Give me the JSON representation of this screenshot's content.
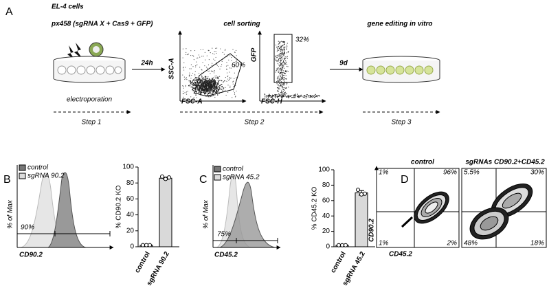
{
  "panel_labels": [
    "A",
    "B",
    "C",
    "D"
  ],
  "panel_a": {
    "cell_line": "EL-4 cells",
    "plasmid": "px458 (sgRNA X + Cas9 + GFP)",
    "electroporation": "electroporation",
    "time1": "24h",
    "sorting": "cell sorting",
    "ssc": "SSC-A",
    "fsc_a": "FSC-A",
    "gate1": "60%",
    "gfp": "GFP",
    "fsc_h": "FSC-H",
    "gate2": "32%",
    "time2": "9d",
    "editing": "gene editing in vitro",
    "steps": [
      "Step 1",
      "Step 2",
      "Step 3"
    ]
  },
  "panel_b": {
    "legend": [
      "control",
      "sgRNA 90.2"
    ],
    "y_label": "% of Max",
    "x_label": "CD90.2",
    "gate": "90%"
  },
  "panel_c": {
    "legend": [
      "control",
      "sgRNA 45.2"
    ],
    "y_label": "% of Max",
    "x_label": "CD45.2",
    "gate": "75%"
  },
  "panel_d": {
    "titles": [
      "control",
      "sgRNAs CD90.2+CD45.2"
    ],
    "y_label": "CD90.2",
    "x_label": "CD45.2",
    "quadrants": [
      [
        "1%",
        "96%",
        "1%",
        "2%"
      ],
      [
        "5.5%",
        "30%",
        "48%",
        "18%"
      ]
    ]
  },
  "chart_data": [
    {
      "type": "bar",
      "y_label": "% CD90.2 KO",
      "categories": [
        "control",
        "sgRNA 90.2"
      ],
      "values": [
        2,
        86
      ],
      "errors": [
        0.5,
        1.5
      ],
      "replicates": [
        [
          2,
          2,
          2
        ],
        [
          88,
          85,
          87
        ]
      ],
      "color": "#d9d9d9",
      "ylim": [
        0,
        100
      ],
      "yticks": [
        0,
        20,
        40,
        60,
        80,
        100
      ]
    },
    {
      "type": "bar",
      "y_label": "% CD45.2 KO",
      "categories": [
        "control",
        "sgRNA 45.2"
      ],
      "values": [
        2,
        70
      ],
      "errors": [
        0.5,
        3
      ],
      "replicates": [
        [
          2,
          2,
          2
        ],
        [
          74,
          68,
          69
        ]
      ],
      "color": "#d9d9d9",
      "ylim": [
        0,
        100
      ],
      "yticks": [
        0,
        20,
        40,
        60,
        80,
        100
      ]
    }
  ]
}
